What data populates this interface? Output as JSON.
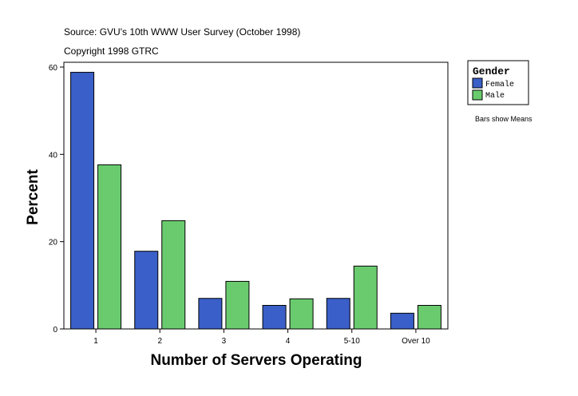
{
  "source_line": "Source: GVU's 10th WWW User Survey (October 1998)",
  "copyright_line": "Copyright 1998 GTRC",
  "note": "Bars show Means",
  "legend": {
    "title": "Gender"
  },
  "colors": {
    "Female": "#3a5fc8",
    "Male": "#6acb6e"
  },
  "chart_data": {
    "type": "bar",
    "categories": [
      "1",
      "2",
      "3",
      "4",
      "5-10",
      "Over 10"
    ],
    "series": [
      {
        "name": "Female",
        "values": [
          58.8,
          17.8,
          7.0,
          5.4,
          7.0,
          3.6
        ]
      },
      {
        "name": "Male",
        "values": [
          37.6,
          24.8,
          10.9,
          6.9,
          14.4,
          5.4
        ]
      }
    ],
    "xlabel": "Number of Servers Operating",
    "ylabel": "Percent",
    "ylim": [
      0,
      60
    ],
    "yticks": [
      0,
      20,
      40,
      60
    ],
    "grid": false,
    "legend_position": "top-right"
  }
}
